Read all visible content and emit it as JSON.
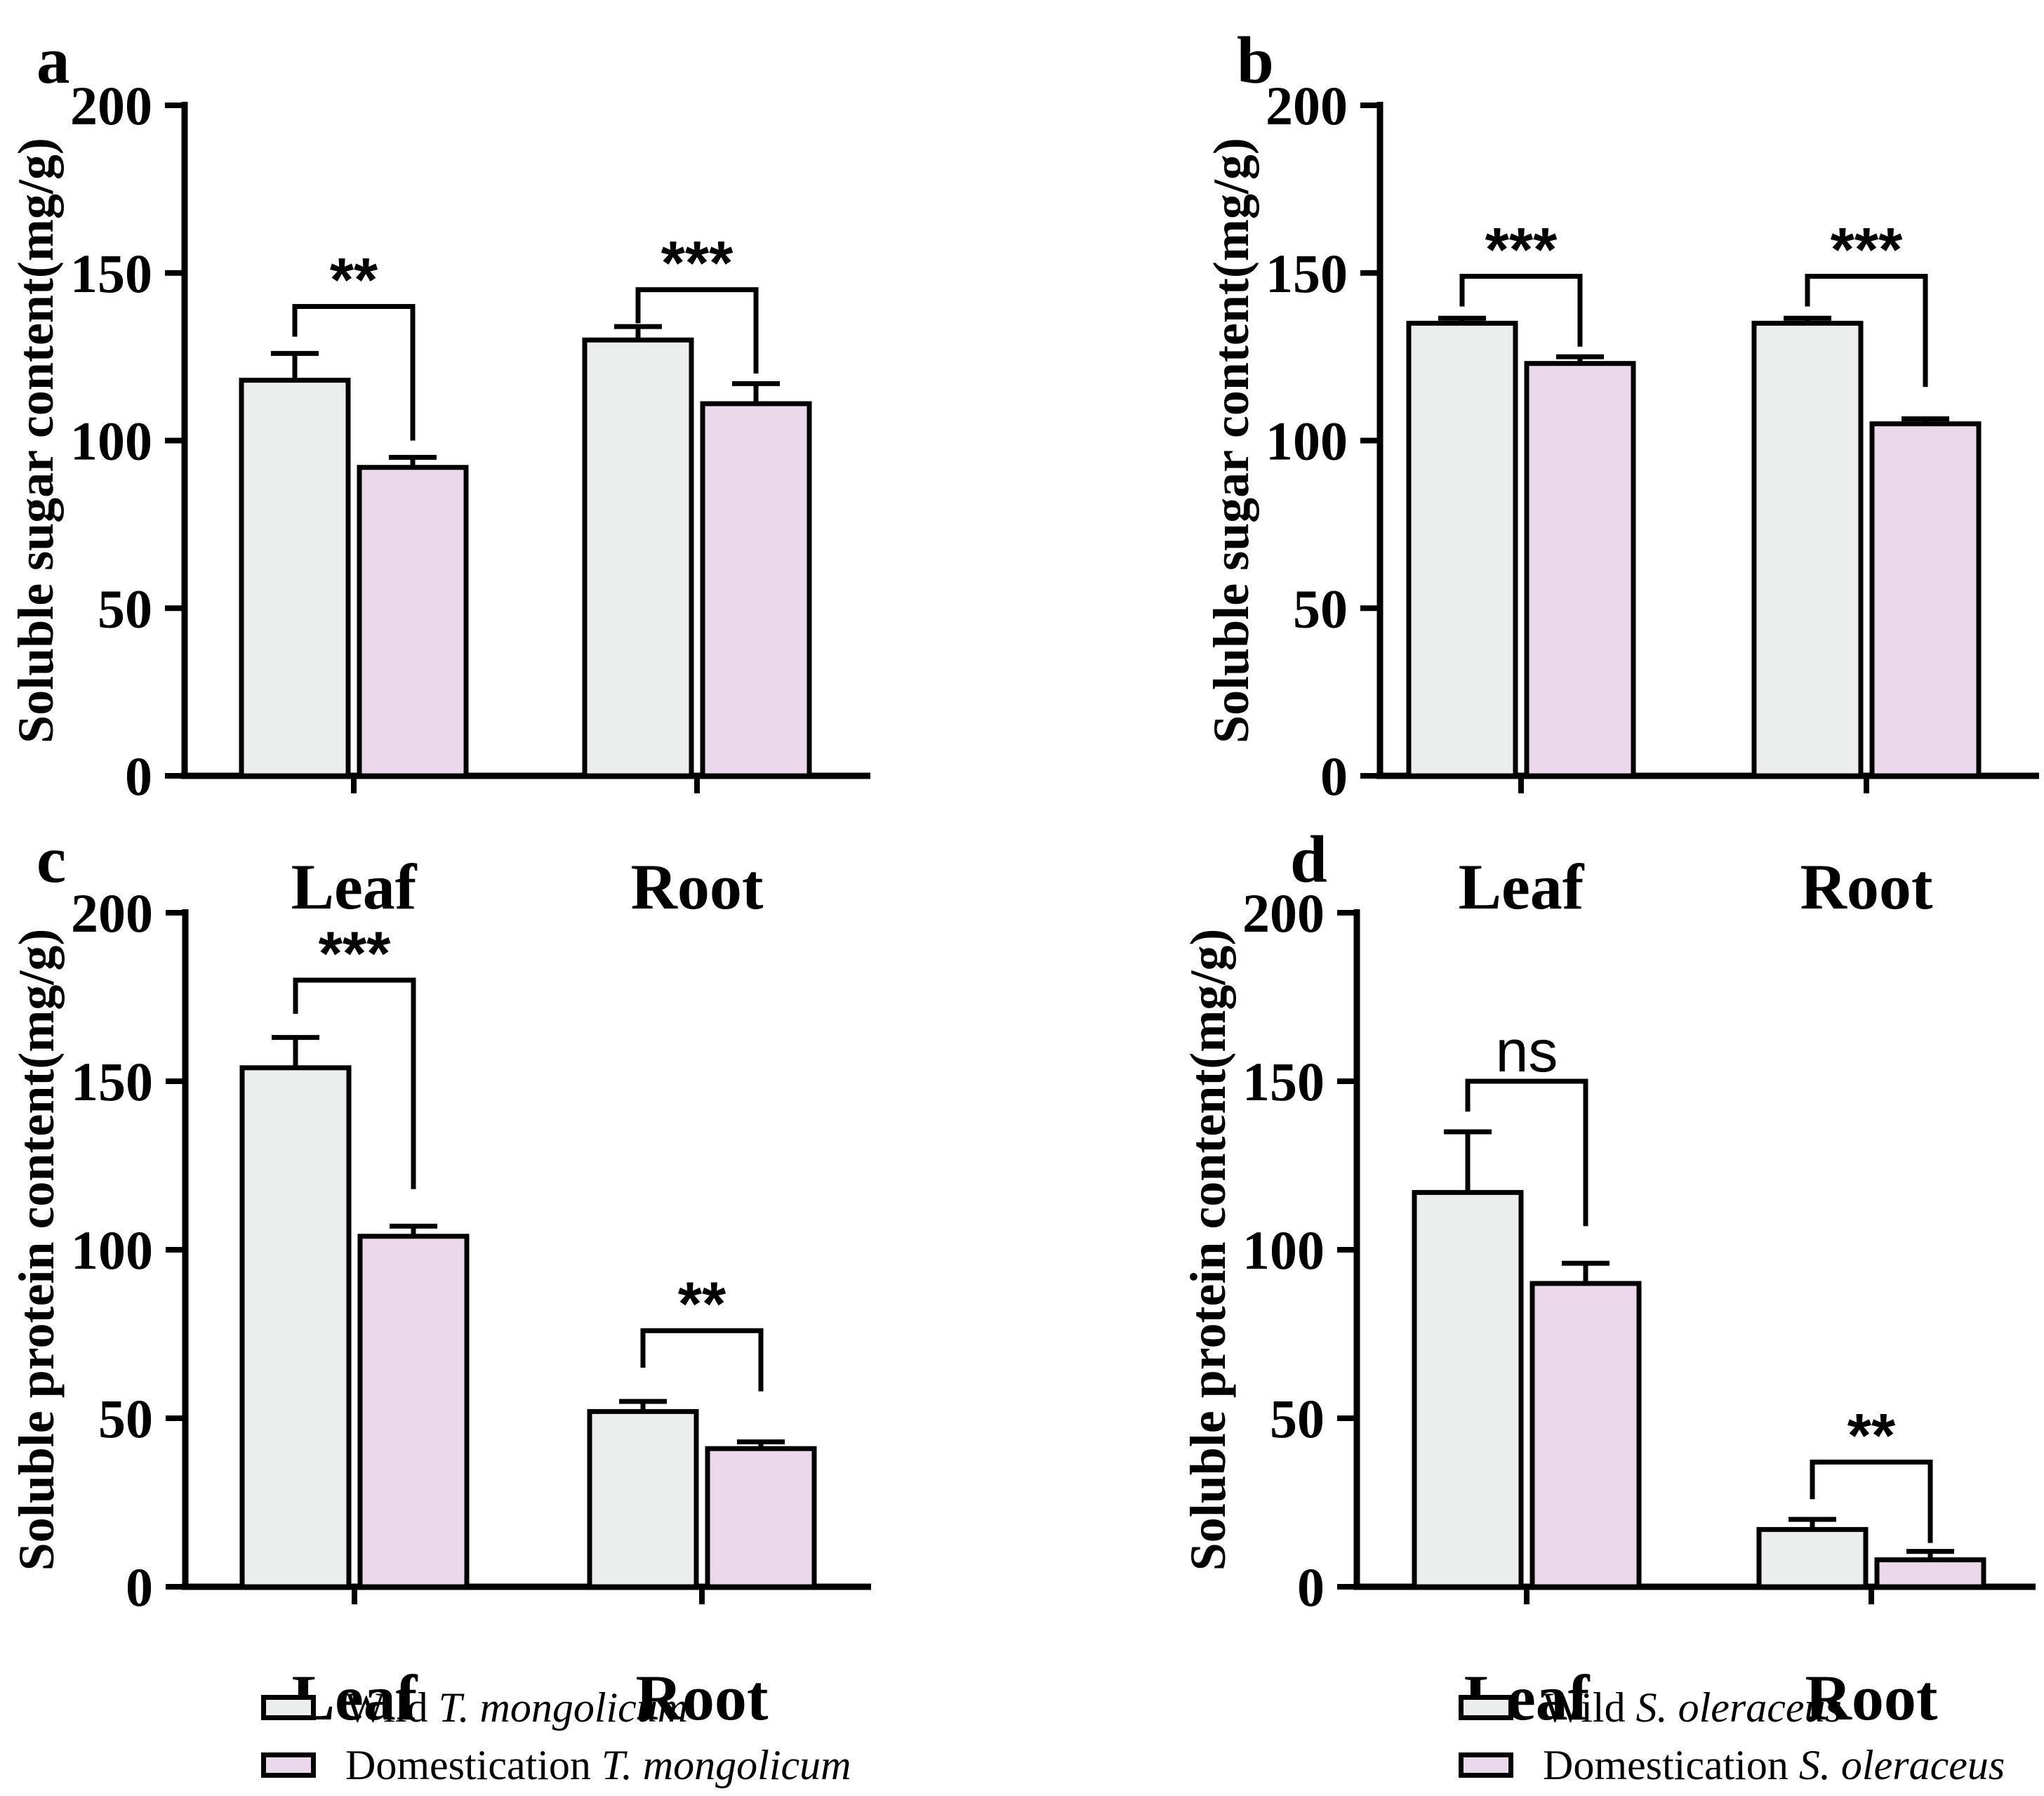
{
  "chart_data": [
    {
      "panel_letter": "a",
      "type": "bar",
      "title": "",
      "ylabel": "Soluble sugar content(mg/g)",
      "xlabel": "",
      "ylim": [
        0,
        200
      ],
      "yticks": [
        0,
        50,
        100,
        150,
        200
      ],
      "grid": false,
      "categories": [
        "Leaf",
        "Root"
      ],
      "series": [
        {
          "name": "Wild T. mongolicum",
          "values": [
            118,
            130
          ],
          "errors": [
            8,
            4
          ]
        },
        {
          "name": "Domestication T. mongolicum",
          "values": [
            92,
            111
          ],
          "errors": [
            3,
            6
          ]
        }
      ],
      "significance": [
        {
          "category": "Leaf",
          "label": "**",
          "bracket_y": 140,
          "left_drop_to": 131,
          "right_drop_to": 100
        },
        {
          "category": "Root",
          "label": "***",
          "bracket_y": 145,
          "left_drop_to": 135,
          "right_drop_to": 120
        }
      ]
    },
    {
      "panel_letter": "b",
      "type": "bar",
      "title": "",
      "ylabel": "Soluble sugar content(mg/g)",
      "xlabel": "",
      "ylim": [
        0,
        200
      ],
      "yticks": [
        0,
        50,
        100,
        150,
        200
      ],
      "grid": false,
      "categories": [
        "Leaf",
        "Root"
      ],
      "series": [
        {
          "name": "Wild S. oleraceus",
          "values": [
            135,
            135
          ],
          "errors": [
            1.5,
            1.5
          ]
        },
        {
          "name": "Domestication S. oleraceus",
          "values": [
            123,
            105
          ],
          "errors": [
            2,
            1.5
          ]
        }
      ],
      "significance": [
        {
          "category": "Leaf",
          "label": "***",
          "bracket_y": 149,
          "left_drop_to": 140,
          "right_drop_to": 128
        },
        {
          "category": "Root",
          "label": "***",
          "bracket_y": 149,
          "left_drop_to": 140,
          "right_drop_to": 116
        }
      ]
    },
    {
      "panel_letter": "c",
      "type": "bar",
      "title": "",
      "ylabel": "Soluble protein content(mg/g)",
      "xlabel": "",
      "ylim": [
        0,
        200
      ],
      "yticks": [
        0,
        50,
        100,
        150,
        200
      ],
      "grid": false,
      "categories": [
        "Leaf",
        "Root"
      ],
      "series": [
        {
          "name": "Wild T. mongolicum",
          "values": [
            154,
            52
          ],
          "errors": [
            9,
            3
          ]
        },
        {
          "name": "Domestication T. mongolicum",
          "values": [
            104,
            41
          ],
          "errors": [
            3,
            2
          ]
        }
      ],
      "significance": [
        {
          "category": "Leaf",
          "label": "***",
          "bracket_y": 180,
          "left_drop_to": 170,
          "right_drop_to": 118
        },
        {
          "category": "Root",
          "label": "**",
          "bracket_y": 76,
          "left_drop_to": 65,
          "right_drop_to": 58
        }
      ]
    },
    {
      "panel_letter": "d",
      "type": "bar",
      "title": "",
      "ylabel": "Soluble protein content(mg/g)",
      "xlabel": "",
      "ylim": [
        0,
        200
      ],
      "yticks": [
        0,
        50,
        100,
        150,
        200
      ],
      "grid": false,
      "categories": [
        "Leaf",
        "Root"
      ],
      "series": [
        {
          "name": "Wild S. oleraceus",
          "values": [
            117,
            17
          ],
          "errors": [
            18,
            3
          ]
        },
        {
          "name": "Domestication S. oleraceus",
          "values": [
            90,
            8
          ],
          "errors": [
            6,
            2.5
          ]
        }
      ],
      "significance": [
        {
          "category": "Leaf",
          "label": "ns",
          "bracket_y": 150,
          "left_drop_to": 141,
          "right_drop_to": 107
        },
        {
          "category": "Root",
          "label": "**",
          "bracket_y": 37,
          "left_drop_to": 26,
          "right_drop_to": 13
        }
      ]
    }
  ],
  "legends": [
    {
      "panel": "c",
      "entries": [
        {
          "prefix": "Wild ",
          "species": "T. mongolicum",
          "swatch": "wild"
        },
        {
          "prefix": "Domestication ",
          "species": "T. mongolicum",
          "swatch": "domestication"
        }
      ]
    },
    {
      "panel": "d",
      "entries": [
        {
          "prefix": "Wild ",
          "species": "S. oleraceus",
          "swatch": "wild"
        },
        {
          "prefix": "Domestication ",
          "species": "S. oleraceus",
          "swatch": "domestication"
        }
      ]
    }
  ],
  "colors": {
    "wild_fill": "#ECEDED",
    "domestication_fill": "#EBD8EA",
    "stroke": "#000000",
    "background": "#FFFFFF"
  }
}
